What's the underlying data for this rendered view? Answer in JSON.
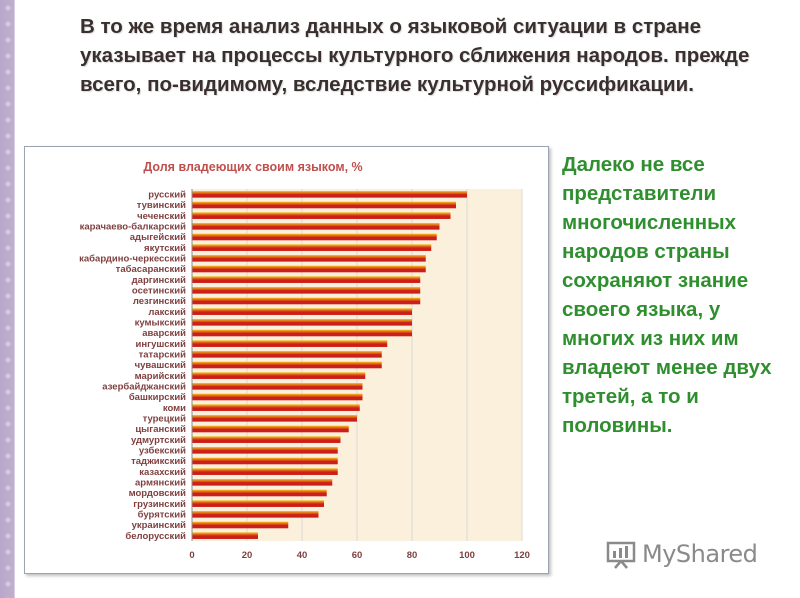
{
  "slide": {
    "heading": "В то же время анализ данных о языковой ситуации в стране указывает на процессы культурного сближения народов. прежде всего, по-видимому, вследствие культурной руссификации.",
    "side_text": "Далеко не все представители многочисленных народов страны сохраняют знание своего языка, у многих из них им владеют менее двух третей, а то и половины."
  },
  "logo": {
    "text": "MyShared",
    "icon": "myshared-logo-icon"
  },
  "colors": {
    "title_text": "#3a2f2f",
    "side_text": "#2f8f2f",
    "bar_dark": "#cc1f1a",
    "bar_light": "#f7c21a",
    "chart_title": "#c0504d",
    "axis_labels": "#7f3f3f",
    "plot_bg": "#fbf0dc"
  },
  "chart_data": {
    "type": "bar",
    "orientation": "horizontal",
    "title": "Доля владеющих своим языком, %",
    "xlabel": "",
    "ylabel": "",
    "xlim": [
      0,
      120
    ],
    "xticks": [
      0,
      20,
      40,
      60,
      80,
      100,
      120
    ],
    "grid": "vertical",
    "legend": "none",
    "categories": [
      "русский",
      "тувинский",
      "чеченский",
      "карачаево-балкарский",
      "адыгейский",
      "якутский",
      "кабардино-черкесский",
      "табасаранский",
      "даргинский",
      "осетинский",
      "лезгинский",
      "лакский",
      "кумыкский",
      "аварский",
      "ингушский",
      "татарский",
      "чувашский",
      "марийский",
      "азербайджанский",
      "башкирский",
      "коми",
      "турецкий",
      "цыганский",
      "удмуртский",
      "узбекский",
      "таджикский",
      "казахский",
      "армянский",
      "мордовский",
      "грузинский",
      "бурятский",
      "украинский",
      "белорусский"
    ],
    "values": [
      100,
      96,
      94,
      90,
      89,
      87,
      85,
      85,
      83,
      83,
      83,
      80,
      80,
      80,
      71,
      69,
      69,
      63,
      62,
      62,
      61,
      60,
      57,
      54,
      53,
      53,
      53,
      51,
      49,
      48,
      46,
      35,
      24
    ]
  }
}
